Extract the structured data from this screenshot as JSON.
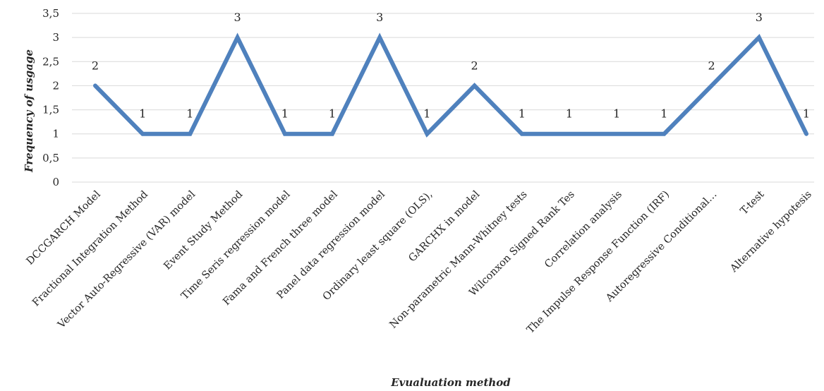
{
  "chart_data": {
    "type": "line",
    "title": "",
    "xlabel": "Evualuation method",
    "ylabel": "Frequency of usgage",
    "ylim": [
      0,
      3.5
    ],
    "yticks": [
      "0",
      "0,5",
      "1",
      "1,5",
      "2",
      "2,5",
      "3",
      "3,5"
    ],
    "ytick_values": [
      0,
      0.5,
      1,
      1.5,
      2,
      2.5,
      3,
      3.5
    ],
    "grid": true,
    "legend": "none",
    "line_color": "#4f81bd",
    "categories": [
      "DCCGARCH Model",
      "Fractional Integration Method",
      "Vector Auto-Regressive (VAR) model",
      "Event Study Method",
      "Time Seris regression model",
      "Fama and French three model",
      "Panel data regression model",
      "Ordinary least square (OLS),",
      "GARCHX in  model",
      "Non-parametric Mann-Whitney tests",
      "Wilconxon Signed Rank Tes",
      "Correlation analysis",
      "The Impulse Response Function (IRF)",
      "Autoregressive Conditional…",
      "T-test",
      "Alternative hypotesis"
    ],
    "values": [
      2,
      1,
      1,
      3,
      1,
      1,
      3,
      1,
      2,
      1,
      1,
      1,
      1,
      2,
      3,
      1
    ],
    "data_labels": [
      "2",
      "1",
      "1",
      "3",
      "1",
      "1",
      "3",
      "1",
      "2",
      "1",
      "1",
      "1",
      "1",
      "2",
      "3",
      "1"
    ]
  }
}
